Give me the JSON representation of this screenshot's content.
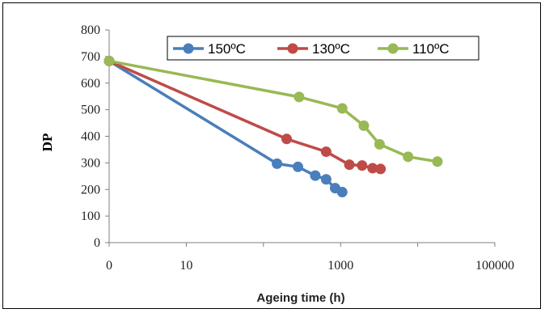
{
  "chart_data": {
    "type": "line",
    "xlabel": "Ageing time (h)",
    "ylabel": "DP",
    "x_scale": "log",
    "x_ticks": [
      "0",
      "10",
      "1000",
      "100000"
    ],
    "y_ticks": [
      "0",
      "100",
      "200",
      "300",
      "400",
      "500",
      "600",
      "700",
      "800"
    ],
    "xlim": [
      1,
      100000
    ],
    "ylim": [
      0,
      800
    ],
    "grid": false,
    "legend_position": "top-right",
    "series": [
      {
        "name": "150ºC",
        "color": "#4a7ebb",
        "points": [
          [
            1,
            683
          ],
          [
            150,
            297
          ],
          [
            280,
            285
          ],
          [
            470,
            252
          ],
          [
            650,
            238
          ],
          [
            850,
            205
          ],
          [
            1050,
            190
          ]
        ]
      },
      {
        "name": "130ºC",
        "color": "#be4b48",
        "points": [
          [
            1,
            683
          ],
          [
            200,
            390
          ],
          [
            650,
            342
          ],
          [
            1300,
            293
          ],
          [
            1900,
            290
          ],
          [
            2600,
            280
          ],
          [
            3300,
            277
          ]
        ]
      },
      {
        "name": "110ºC",
        "color": "#98b954",
        "points": [
          [
            1,
            683
          ],
          [
            290,
            548
          ],
          [
            1050,
            505
          ],
          [
            2000,
            440
          ],
          [
            3200,
            370
          ],
          [
            7500,
            323
          ],
          [
            18000,
            305
          ]
        ]
      }
    ]
  }
}
